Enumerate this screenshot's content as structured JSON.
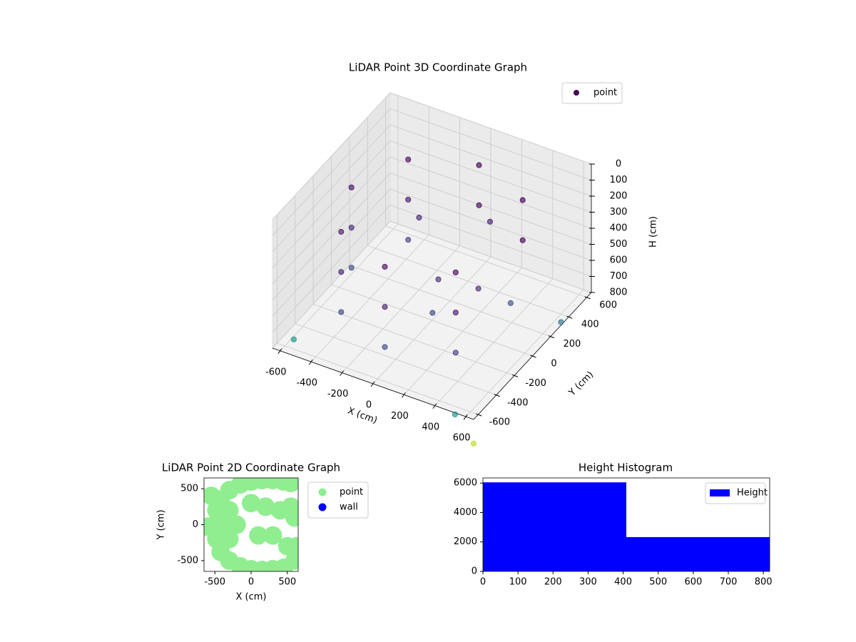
{
  "chart_data": [
    {
      "type": "scatter3d",
      "title": "LiDAR Point 3D Coordinate Graph",
      "x_label": "X (cm)",
      "y_label": "Y (cm)",
      "z_label": "H (cm)",
      "xlim": [
        -650,
        650
      ],
      "ylim": [
        -650,
        650
      ],
      "zlim": [
        0,
        800
      ],
      "z_inverted": true,
      "xticks": [
        -600,
        -400,
        -200,
        0,
        200,
        400,
        600
      ],
      "yticks": [
        -600,
        -400,
        -200,
        0,
        200,
        400,
        600
      ],
      "zticks": [
        0,
        100,
        200,
        300,
        400,
        500,
        600,
        700,
        800
      ],
      "grid": true,
      "legend": "upper right",
      "series": [
        {
          "name": "point",
          "color": "#440154",
          "x": [
            0,
            -370,
            -520,
            -370,
            0,
            370,
            370,
            0,
            -370,
            -520,
            -370,
            0,
            370,
            370,
            -370,
            -520,
            -370,
            0,
            370,
            200,
            100,
            300,
            -200,
            450,
            150,
            500,
            600,
            650,
            -600
          ],
          "y": [
            520,
            370,
            0,
            -370,
            -520,
            -370,
            370,
            520,
            370,
            0,
            -370,
            -520,
            -370,
            370,
            370,
            0,
            -370,
            -520,
            -370,
            300,
            -100,
            0,
            200,
            100,
            -250,
            -600,
            400,
            -650,
            -500
          ],
          "z": [
            150,
            150,
            150,
            150,
            150,
            150,
            150,
            400,
            400,
            400,
            400,
            400,
            400,
            400,
            650,
            650,
            650,
            650,
            650,
            300,
            450,
            500,
            350,
            600,
            550,
            850,
            850,
            950,
            820
          ],
          "colors": [
            "#440154",
            "#46085c",
            "#471063",
            "#48186a",
            "#471063",
            "#46085c",
            "#440154",
            "#46085c",
            "#48186a",
            "#472d7b",
            "#482475",
            "#481f70",
            "#48186a",
            "#46085c",
            "#433e85",
            "#3e4989",
            "#414487",
            "#3e4989",
            "#433e85",
            "#481f70",
            "#482878",
            "#482878",
            "#482475",
            "#3b528b",
            "#414487",
            "#21918c",
            "#2c728e",
            "#b5de2b",
            "#21918c"
          ]
        }
      ]
    },
    {
      "type": "scatter",
      "title": "LiDAR Point 2D Coordinate Graph",
      "x_label": "X (cm)",
      "y_label": "Y (cm)",
      "xlim": [
        -650,
        650
      ],
      "ylim": [
        -650,
        650
      ],
      "xticks": [
        -500,
        0,
        500
      ],
      "yticks": [
        -500,
        0,
        500
      ],
      "legend": "outside right",
      "series": [
        {
          "name": "point",
          "color": "#90ee90",
          "x": [
            -500,
            -480,
            -420,
            -300,
            -150,
            0,
            150,
            300,
            450,
            550,
            -480,
            -420,
            -300,
            -150,
            0,
            150,
            300,
            450,
            600,
            -400,
            -300,
            -300,
            -200,
            0,
            200,
            400,
            550,
            100,
            300,
            500,
            600,
            630,
            -600,
            -550
          ],
          "y": [
            0,
            200,
            350,
            480,
            560,
            600,
            620,
            620,
            600,
            580,
            -200,
            -380,
            -500,
            -580,
            -620,
            -630,
            -620,
            -600,
            -500,
            0,
            200,
            -200,
            0,
            300,
            250,
            200,
            250,
            -150,
            -150,
            -300,
            100,
            -300,
            -30,
            400
          ]
        },
        {
          "name": "wall",
          "color": "#0000ff",
          "x": [],
          "y": []
        }
      ]
    },
    {
      "type": "histogram",
      "title": "Height Histogram",
      "bins": [
        0,
        409,
        818
      ],
      "xlim": [
        0,
        818
      ],
      "ylim": [
        0,
        6350
      ],
      "xticks": [
        0,
        100,
        200,
        300,
        400,
        500,
        600,
        700,
        800
      ],
      "yticks": [
        0,
        2000,
        4000,
        6000
      ],
      "legend": "upper right",
      "series": [
        {
          "name": "Height",
          "color": "#0000ff",
          "values": [
            6050,
            2330
          ]
        }
      ]
    }
  ]
}
